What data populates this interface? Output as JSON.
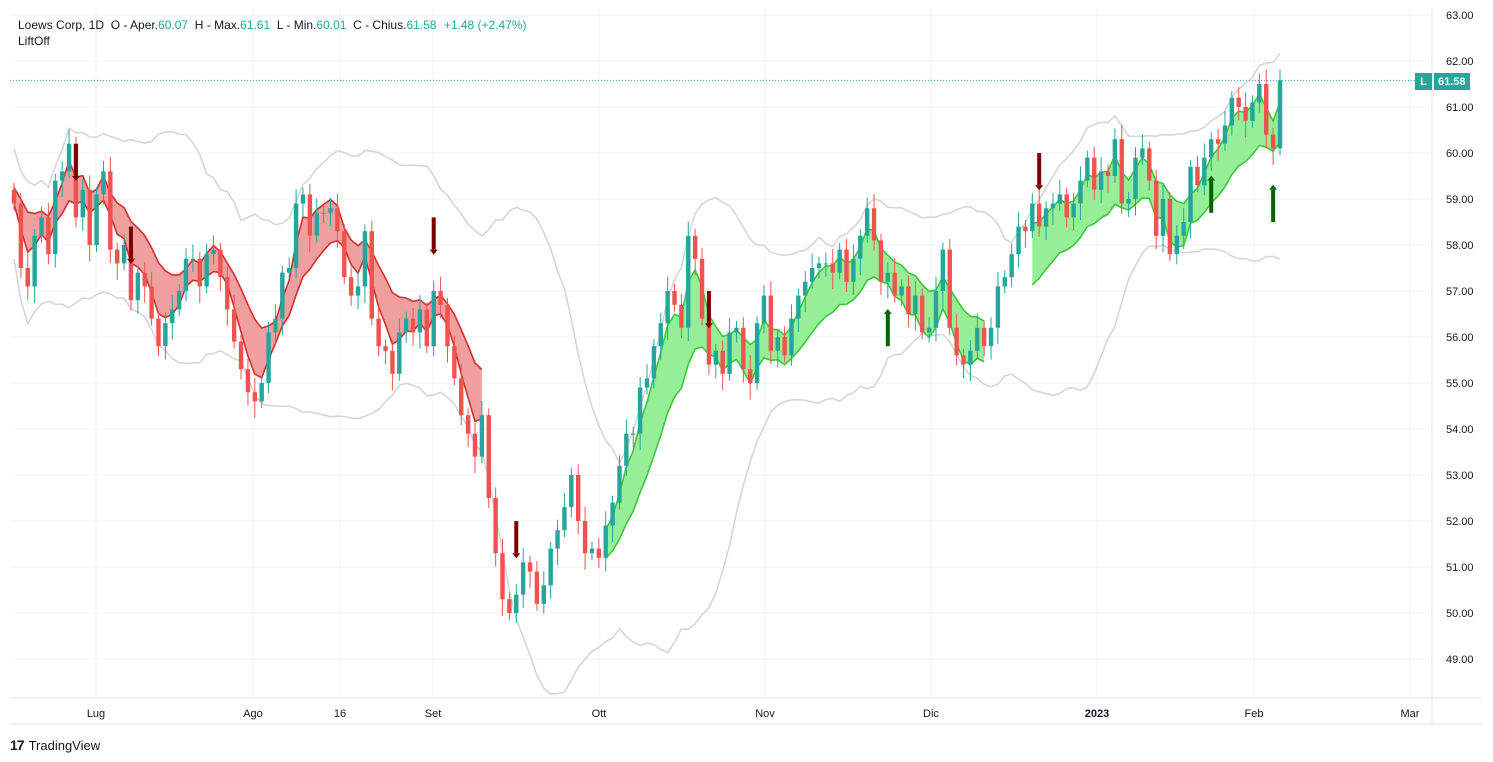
{
  "legend": {
    "symbol": "Loews Corp, 1D",
    "o_label": "O - Aper.",
    "o": "60.07",
    "h_label": "H - Max.",
    "h": "61.61",
    "l_label": "L - Min.",
    "l": "60.01",
    "c_label": "C - Chius.",
    "c": "61.58",
    "change": "+1.48 (+2.47%)"
  },
  "indicator_name": "LiftOff",
  "last_price": {
    "label": "L",
    "value": "61.58"
  },
  "branding": "TradingView",
  "colors": {
    "up": "#26a69a",
    "down": "#ef5350",
    "bear_band": "#ef9a9a",
    "bull_band": "#90ee90",
    "arrow_down": "#7f0000",
    "arrow_up": "#006400",
    "bands": "#d6d6d6"
  },
  "chart_data": {
    "type": "candlestick",
    "y_ticks": [
      "63.00",
      "62.00",
      "61.00",
      "60.00",
      "59.00",
      "58.00",
      "57.00",
      "56.00",
      "55.00",
      "54.00",
      "53.00",
      "52.00",
      "51.00",
      "50.00",
      "49.00"
    ],
    "x_ticks": [
      "Lug",
      "Ago",
      "16",
      "Set",
      "Ott",
      "Nov",
      "Dic",
      "2023",
      "Feb",
      "Mar"
    ],
    "ylim": [
      48.2,
      63.3
    ],
    "closes": [
      58.9,
      57.5,
      57.1,
      58.2,
      58.6,
      57.8,
      59.4,
      59.6,
      60.2,
      58.6,
      59.2,
      58.0,
      59.1,
      59.6,
      57.9,
      57.6,
      58.0,
      56.8,
      57.4,
      57.1,
      56.4,
      55.8,
      56.3,
      56.6,
      57.0,
      57.7,
      57.7,
      57.1,
      57.8,
      57.9,
      57.3,
      56.6,
      55.9,
      55.3,
      54.8,
      54.6,
      55.0,
      56.1,
      56.4,
      57.4,
      57.5,
      58.9,
      59.1,
      58.2,
      58.7,
      58.7,
      58.8,
      58.3,
      57.3,
      56.9,
      57.1,
      58.3,
      56.4,
      55.8,
      55.7,
      55.2,
      56.1,
      56.4,
      56.1,
      56.6,
      55.8,
      57.0,
      56.7,
      55.8,
      55.1,
      54.3,
      53.9,
      53.4,
      54.3,
      52.5,
      51.3,
      50.3,
      50.0,
      50.4,
      51.1,
      50.9,
      50.2,
      50.6,
      51.4,
      51.8,
      52.3,
      53.0,
      52.0,
      51.3,
      51.4,
      51.2,
      51.9,
      52.4,
      53.2,
      53.9,
      53.9,
      54.9,
      55.1,
      55.8,
      56.3,
      57.0,
      56.7,
      56.2,
      58.2,
      57.7,
      56.4,
      55.4,
      55.7,
      55.2,
      56.1,
      56.2,
      55.3,
      55.0,
      56.3,
      56.9,
      55.7,
      56.0,
      55.6,
      56.4,
      56.9,
      57.2,
      57.5,
      57.6,
      57.6,
      57.4,
      57.9,
      57.2,
      57.7,
      58.2,
      58.8,
      58.1,
      57.2,
      57.4,
      56.9,
      57.1,
      56.5,
      56.9,
      56.1,
      56.2,
      57.0,
      57.9,
      56.2,
      55.6,
      55.4,
      55.7,
      56.2,
      55.8,
      56.2,
      57.1,
      57.3,
      57.8,
      58.4,
      58.3,
      58.9,
      58.4,
      58.8,
      58.9,
      59.1,
      58.6,
      58.9,
      59.4,
      59.9,
      59.2,
      59.6,
      59.5,
      60.3,
      58.9,
      59.0,
      59.9,
      60.1,
      59.4,
      58.2,
      59.0,
      57.8,
      58.2,
      58.5,
      59.7,
      59.3,
      59.9,
      60.3,
      60.2,
      60.6,
      61.2,
      61.0,
      60.7,
      61.1,
      61.5,
      60.4,
      60.1,
      61.58
    ]
  }
}
